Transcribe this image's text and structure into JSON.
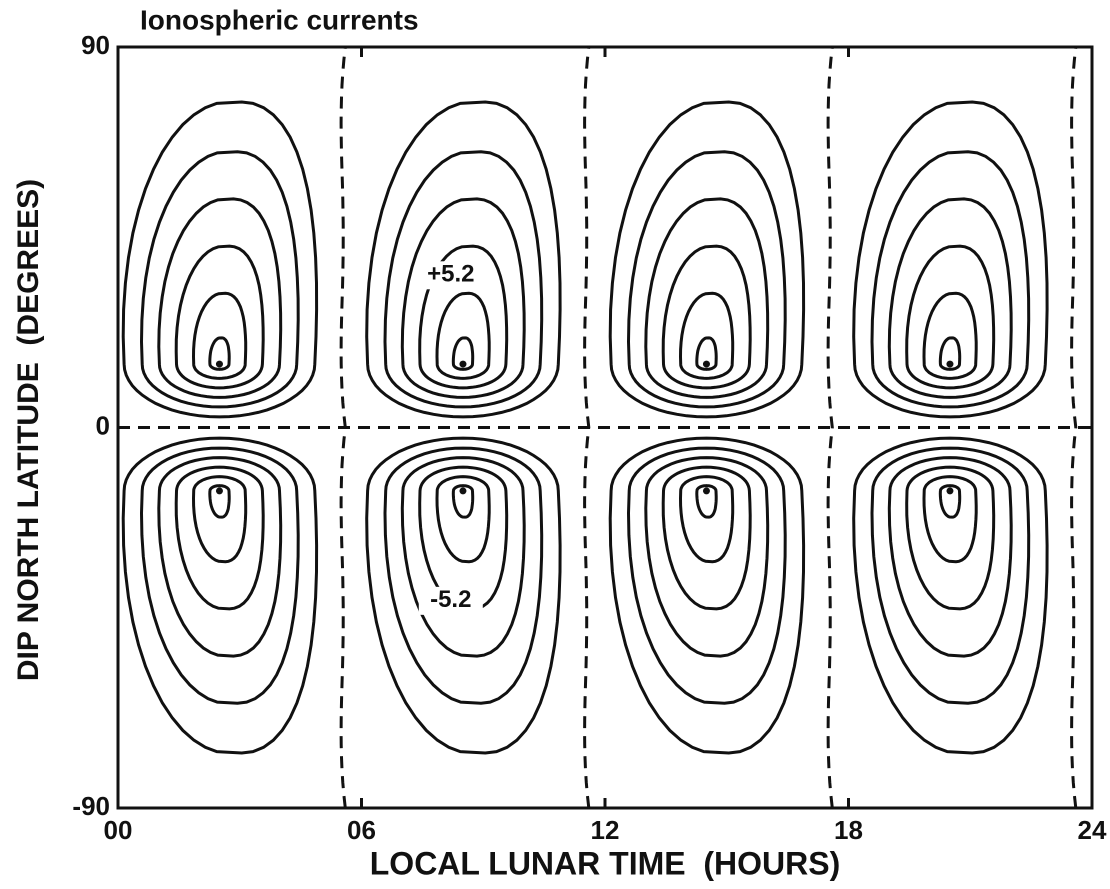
{
  "chart_data": {
    "type": "contour",
    "title": "Ionospheric currents",
    "x_label": "LOCAL LUNAR TIME  (HOURS)",
    "y_label": "DIP NORTH LATITUDE  (DEGREES)",
    "xlim": [
      0,
      24
    ],
    "ylim": [
      -90,
      90
    ],
    "xticks": [
      {
        "value": 0,
        "label": "00"
      },
      {
        "value": 6,
        "label": "06"
      },
      12,
      18,
      24
    ],
    "yticks": [
      -90,
      0,
      90
    ],
    "annotations": [
      "+5.2",
      "-5.2"
    ]
  }
}
